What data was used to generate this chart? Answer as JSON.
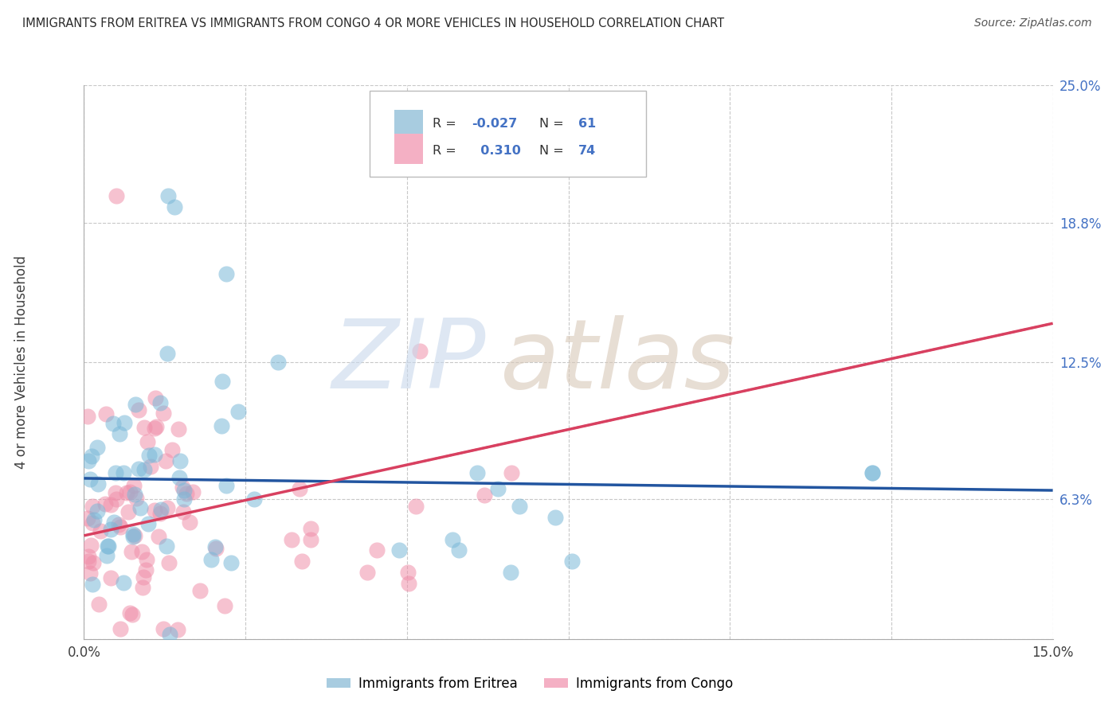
{
  "title": "IMMIGRANTS FROM ERITREA VS IMMIGRANTS FROM CONGO 4 OR MORE VEHICLES IN HOUSEHOLD CORRELATION CHART",
  "source": "Source: ZipAtlas.com",
  "ylabel": "4 or more Vehicles in Household",
  "xlim": [
    0.0,
    0.15
  ],
  "ylim": [
    0.0,
    0.25
  ],
  "ytick_vals": [
    0.0,
    0.063,
    0.125,
    0.188,
    0.25
  ],
  "ytick_labels": [
    "",
    "6.3%",
    "12.5%",
    "18.8%",
    "25.0%"
  ],
  "xtick_vals": [
    0.0,
    0.025,
    0.05,
    0.075,
    0.1,
    0.125,
    0.15
  ],
  "xtick_labels": [
    "0.0%",
    "",
    "",
    "",
    "",
    "",
    "15.0%"
  ],
  "legend_labels": [
    "Immigrants from Eritrea",
    "Immigrants from Congo"
  ],
  "blue_scatter_color": "#7ab8d8",
  "pink_scatter_color": "#f090aa",
  "blue_line_color": "#2255a0",
  "pink_line_color": "#d84060",
  "blue_R": -0.027,
  "pink_R": 0.31,
  "blue_N": 61,
  "pink_N": 74,
  "background_color": "#ffffff",
  "grid_color": "#c8c8c8",
  "title_color": "#2a2a2a",
  "right_tick_color": "#4472c4",
  "legend_box_color": "#a8cce0",
  "legend_box_pink": "#f4b0c4",
  "legend_R_color": "#4472c4",
  "legend_N_color": "#4472c4",
  "legend_text_color": "#333333"
}
